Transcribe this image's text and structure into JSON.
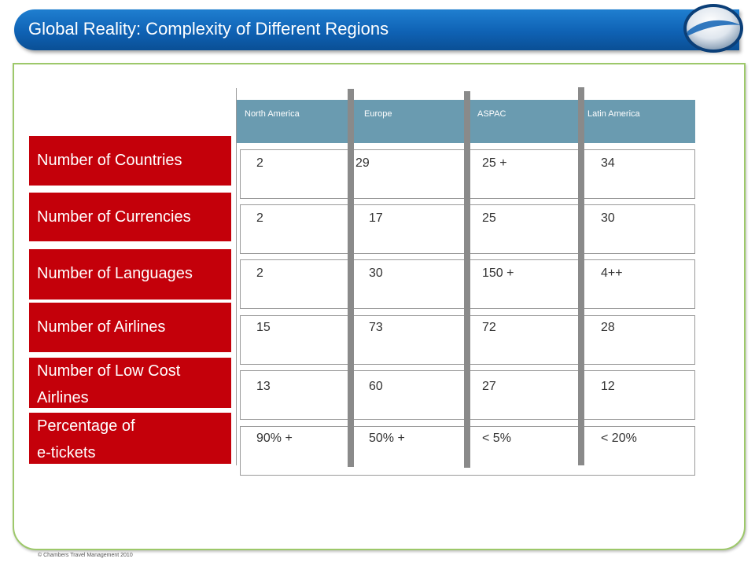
{
  "header": {
    "title": "Global Reality: Complexity of Different Regions"
  },
  "columns": [
    "North America",
    "Europe",
    "ASPAC",
    "Latin America"
  ],
  "rows": [
    {
      "label": "Number of Countries",
      "values": [
        "2",
        "29",
        "25 +",
        "34"
      ]
    },
    {
      "label": "Number of Currencies",
      "values": [
        "2",
        "17",
        "25",
        "30"
      ]
    },
    {
      "label": "Number of Languages",
      "values": [
        "2",
        "30",
        "150 +",
        "4++"
      ]
    },
    {
      "label": "Number of Airlines",
      "values": [
        "15",
        "73",
        "72",
        "28"
      ]
    },
    {
      "label_lines": [
        "Number of Low Cost",
        "Airlines"
      ],
      "values": [
        "13",
        "60",
        "27",
        "12"
      ]
    },
    {
      "label_lines": [
        "Percentage of",
        "e-tickets"
      ],
      "values": [
        "90% +",
        "50% +",
        "< 5%",
        "< 20%"
      ]
    }
  ],
  "footer": "© Chambers Travel Management 2010",
  "colors": {
    "header_blue": "#0f62b4",
    "label_red": "#c4000a",
    "column_header": "#6a9bb0",
    "frame_green": "#9dc86a"
  }
}
